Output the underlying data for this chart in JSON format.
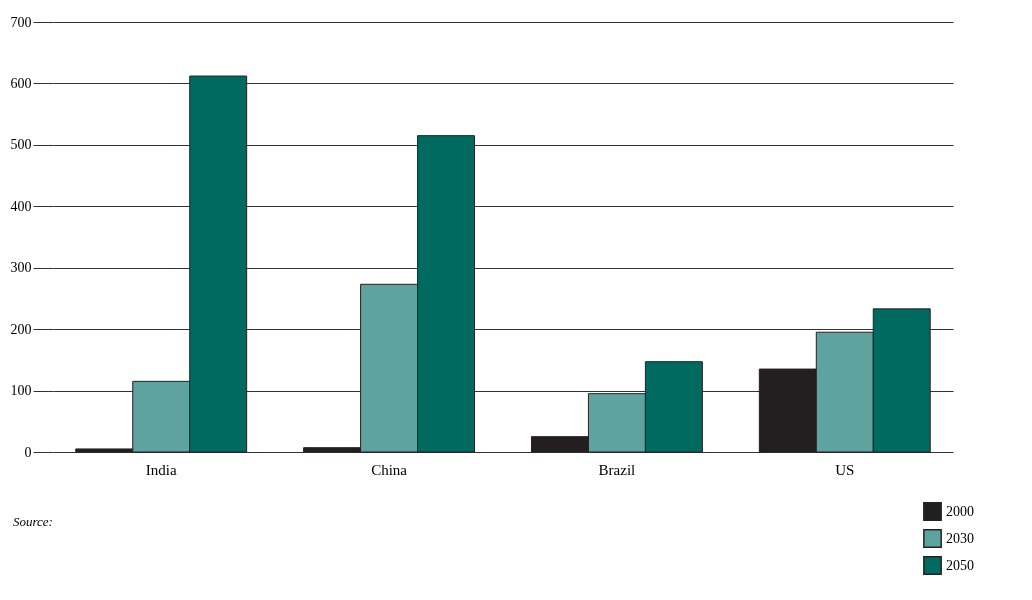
{
  "chart_data": {
    "type": "bar",
    "categories": [
      "India",
      "China",
      "Brazil",
      "US"
    ],
    "series": [
      {
        "name": "2000",
        "color": "#231f20",
        "values": [
          5,
          7,
          25,
          135
        ]
      },
      {
        "name": "2030",
        "color": "#5fa3a0",
        "values": [
          115,
          273,
          95,
          195
        ]
      },
      {
        "name": "2050",
        "color": "#006a60",
        "values": [
          612,
          515,
          147,
          233
        ]
      }
    ],
    "ylim": [
      0,
      700
    ],
    "yticks": [
      0,
      100,
      200,
      300,
      400,
      500,
      600,
      700
    ],
    "grid": "y",
    "legend": "bottom right",
    "annotations": [
      "Source:"
    ]
  }
}
